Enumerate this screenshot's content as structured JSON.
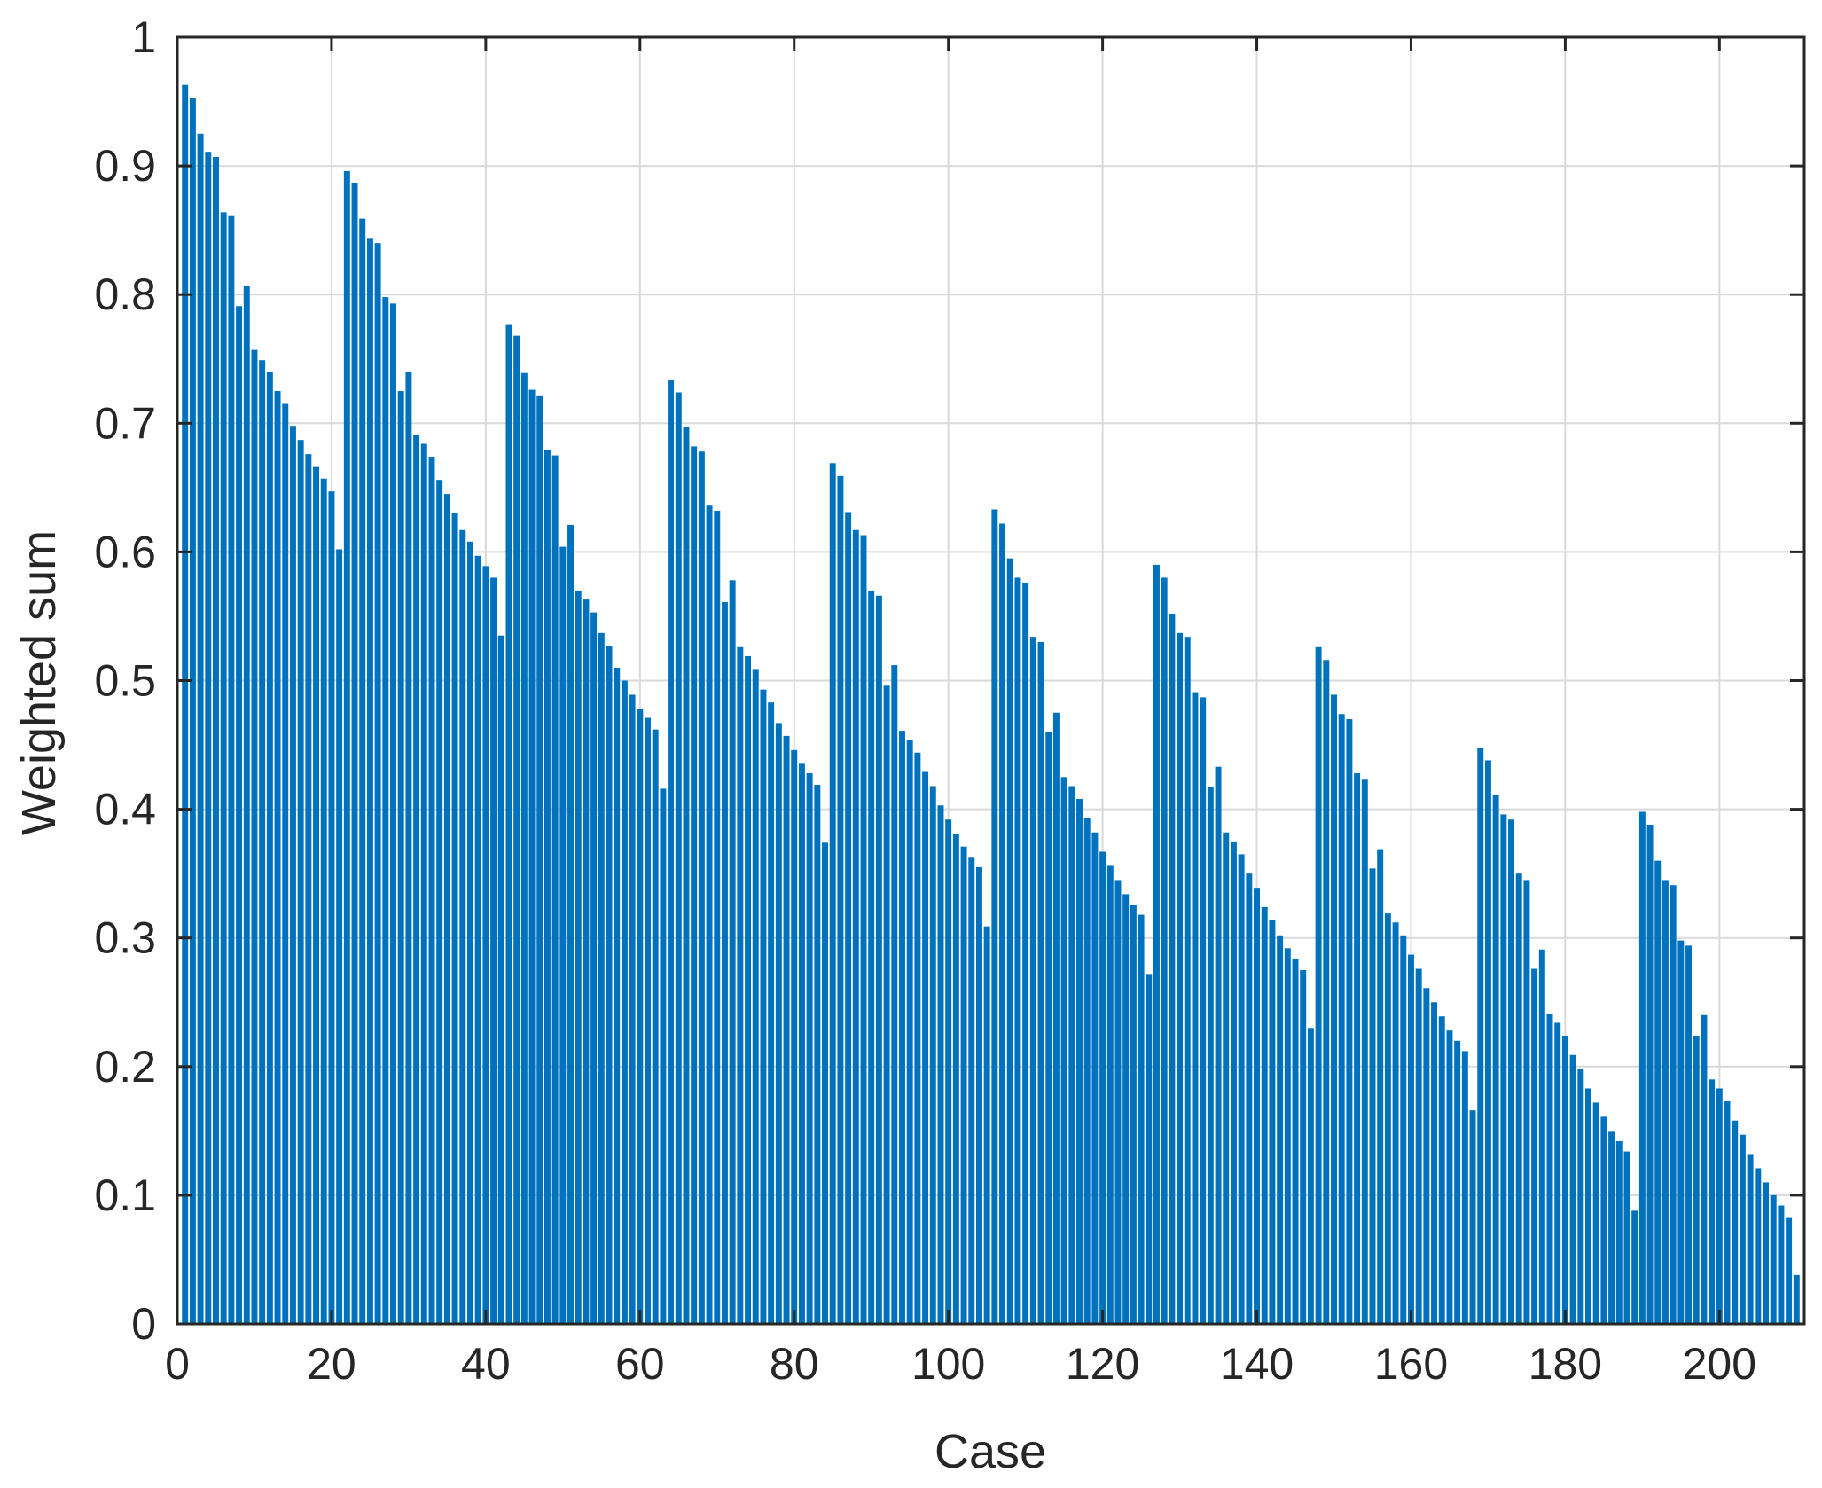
{
  "chart_data": {
    "type": "bar",
    "title": "",
    "xlabel": "Case",
    "ylabel": "Weighted sum",
    "xlim": [
      0,
      211
    ],
    "ylim": [
      0,
      1
    ],
    "grid": true,
    "bar_color": "#0072BD",
    "xticks": [
      "0",
      "20",
      "40",
      "60",
      "80",
      "100",
      "120",
      "140",
      "160",
      "180",
      "200"
    ],
    "yticks": [
      "0",
      "0.1",
      "0.2",
      "0.3",
      "0.4",
      "0.5",
      "0.6",
      "0.7",
      "0.8",
      "0.9",
      "1"
    ],
    "x": [
      1,
      2,
      3,
      4,
      5,
      6,
      7,
      8,
      9,
      10,
      11,
      12,
      13,
      14,
      15,
      16,
      17,
      18,
      19,
      20,
      21,
      22,
      23,
      24,
      25,
      26,
      27,
      28,
      29,
      30,
      31,
      32,
      33,
      34,
      35,
      36,
      37,
      38,
      39,
      40,
      41,
      42,
      43,
      44,
      45,
      46,
      47,
      48,
      49,
      50,
      51,
      52,
      53,
      54,
      55,
      56,
      57,
      58,
      59,
      60,
      61,
      62,
      63,
      64,
      65,
      66,
      67,
      68,
      69,
      70,
      71,
      72,
      73,
      74,
      75,
      76,
      77,
      78,
      79,
      80,
      81,
      82,
      83,
      84,
      85,
      86,
      87,
      88,
      89,
      90,
      91,
      92,
      93,
      94,
      95,
      96,
      97,
      98,
      99,
      100,
      101,
      102,
      103,
      104,
      105,
      106,
      107,
      108,
      109,
      110,
      111,
      112,
      113,
      114,
      115,
      116,
      117,
      118,
      119,
      120,
      121,
      122,
      123,
      124,
      125,
      126,
      127,
      128,
      129,
      130,
      131,
      132,
      133,
      134,
      135,
      136,
      137,
      138,
      139,
      140,
      141,
      142,
      143,
      144,
      145,
      146,
      147,
      148,
      149,
      150,
      151,
      152,
      153,
      154,
      155,
      156,
      157,
      158,
      159,
      160,
      161,
      162,
      163,
      164,
      165,
      166,
      167,
      168,
      169,
      170,
      171,
      172,
      173,
      174,
      175,
      176,
      177,
      178,
      179,
      180,
      181,
      182,
      183,
      184,
      185,
      186,
      187,
      188,
      189,
      190,
      191,
      192,
      193,
      194,
      195,
      196,
      197,
      198,
      199,
      200,
      201,
      202,
      203,
      204,
      205,
      206,
      207,
      208,
      209,
      210
    ],
    "values": [
      0.963,
      0.953,
      0.925,
      0.911,
      0.907,
      0.864,
      0.861,
      0.791,
      0.807,
      0.757,
      0.749,
      0.74,
      0.725,
      0.715,
      0.698,
      0.687,
      0.676,
      0.666,
      0.657,
      0.647,
      0.602,
      0.896,
      0.887,
      0.859,
      0.844,
      0.84,
      0.798,
      0.793,
      0.725,
      0.74,
      0.691,
      0.684,
      0.674,
      0.656,
      0.645,
      0.63,
      0.617,
      0.608,
      0.597,
      0.589,
      0.58,
      0.535,
      0.777,
      0.768,
      0.739,
      0.726,
      0.721,
      0.679,
      0.675,
      0.604,
      0.621,
      0.57,
      0.563,
      0.553,
      0.537,
      0.527,
      0.51,
      0.5,
      0.489,
      0.478,
      0.471,
      0.462,
      0.416,
      0.734,
      0.724,
      0.697,
      0.682,
      0.678,
      0.636,
      0.632,
      0.561,
      0.578,
      0.526,
      0.519,
      0.509,
      0.493,
      0.483,
      0.467,
      0.457,
      0.446,
      0.436,
      0.428,
      0.419,
      0.374,
      0.669,
      0.659,
      0.631,
      0.617,
      0.613,
      0.57,
      0.566,
      0.496,
      0.512,
      0.461,
      0.454,
      0.444,
      0.429,
      0.418,
      0.403,
      0.392,
      0.381,
      0.371,
      0.363,
      0.355,
      0.309,
      0.633,
      0.622,
      0.595,
      0.58,
      0.576,
      0.534,
      0.53,
      0.46,
      0.475,
      0.425,
      0.418,
      0.408,
      0.393,
      0.382,
      0.367,
      0.356,
      0.345,
      0.334,
      0.326,
      0.318,
      0.272,
      0.59,
      0.58,
      0.552,
      0.537,
      0.534,
      0.491,
      0.487,
      0.417,
      0.433,
      0.382,
      0.375,
      0.365,
      0.35,
      0.339,
      0.324,
      0.314,
      0.302,
      0.292,
      0.284,
      0.275,
      0.23,
      0.526,
      0.516,
      0.489,
      0.474,
      0.47,
      0.428,
      0.423,
      0.354,
      0.369,
      0.319,
      0.312,
      0.302,
      0.287,
      0.276,
      0.261,
      0.25,
      0.239,
      0.228,
      0.22,
      0.212,
      0.166,
      0.448,
      0.438,
      0.411,
      0.396,
      0.392,
      0.35,
      0.345,
      0.276,
      0.291,
      0.241,
      0.234,
      0.224,
      0.209,
      0.198,
      0.183,
      0.172,
      0.161,
      0.15,
      0.142,
      0.134,
      0.088,
      0.398,
      0.388,
      0.36,
      0.345,
      0.341,
      0.298,
      0.294,
      0.224,
      0.24,
      0.19,
      0.183,
      0.173,
      0.158,
      0.147,
      0.132,
      0.121,
      0.11,
      0.1,
      0.092,
      0.083,
      0.038
    ]
  }
}
